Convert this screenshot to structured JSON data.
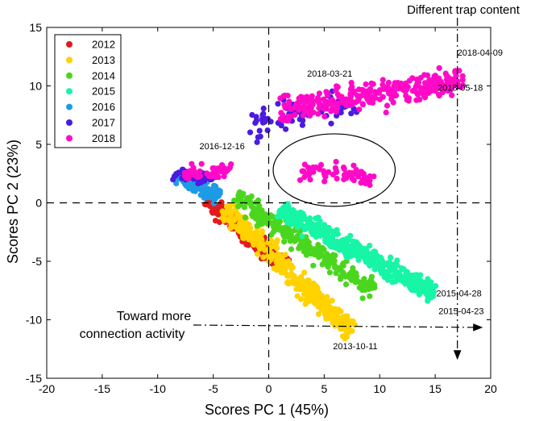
{
  "chart_data": {
    "type": "scatter",
    "title": "",
    "xlabel": "Scores PC 1 (45%)",
    "ylabel": "Scores PC 2 (23%)",
    "xlim": [
      -20,
      20
    ],
    "ylim": [
      -15,
      15
    ],
    "xticks": [
      -20,
      -15,
      -10,
      -5,
      0,
      5,
      10,
      15,
      20
    ],
    "yticks": [
      -15,
      -10,
      -5,
      0,
      5,
      10,
      15
    ],
    "grid": false,
    "legend_position": "top-left",
    "series": [
      {
        "name": "2012",
        "color": "#e41a1c",
        "clusters": [
          {
            "from": [
              -5.5,
              0.2
            ],
            "to": [
              1.5,
              -5.4
            ],
            "n": 220,
            "spread": 0.45
          }
        ]
      },
      {
        "name": "2013",
        "color": "#ffd200",
        "clusters": [
          {
            "from": [
              -4.0,
              -0.5
            ],
            "to": [
              7.5,
              -11.0
            ],
            "n": 360,
            "spread": 0.6
          }
        ]
      },
      {
        "name": "2014",
        "color": "#4bd61e",
        "clusters": [
          {
            "from": [
              -3.0,
              0.5
            ],
            "to": [
              9.5,
              -7.5
            ],
            "n": 260,
            "spread": 0.55
          }
        ]
      },
      {
        "name": "2015",
        "color": "#17f5a6",
        "clusters": [
          {
            "from": [
              1.0,
              -0.5
            ],
            "to": [
              15.0,
              -7.8
            ],
            "n": 420,
            "spread": 0.6
          }
        ]
      },
      {
        "name": "2016",
        "color": "#1e9be6",
        "clusters": [
          {
            "from": [
              -8.0,
              2.3
            ],
            "to": [
              -4.5,
              0.5
            ],
            "n": 110,
            "spread": 0.4
          }
        ]
      },
      {
        "name": "2017",
        "color": "#4a1be0",
        "clusters": [
          {
            "from": [
              -8.5,
              2.6
            ],
            "to": [
              -5.0,
              2.0
            ],
            "n": 60,
            "spread": 0.35
          },
          {
            "from": [
              -1.5,
              6.5
            ],
            "to": [
              8.0,
              8.5
            ],
            "n": 70,
            "spread": 1.0
          }
        ]
      },
      {
        "name": "2018",
        "color": "#ff0ac8",
        "clusters": [
          {
            "from": [
              -7.5,
              2.5
            ],
            "to": [
              -3.5,
              2.8
            ],
            "n": 60,
            "spread": 0.4
          },
          {
            "from": [
              1.0,
              8.0
            ],
            "to": [
              17.5,
              10.5
            ],
            "n": 300,
            "spread": 0.9
          },
          {
            "from": [
              3.0,
              3.0
            ],
            "to": [
              9.5,
              2.2
            ],
            "n": 60,
            "spread": 0.6
          }
        ]
      }
    ],
    "legend_labels": [
      "2012",
      "2013",
      "2014",
      "2015",
      "2016",
      "2017",
      "2018"
    ],
    "annotations": [
      {
        "text": "2018-04-09",
        "x": 17.0,
        "y": 12.6
      },
      {
        "text": "2018-03-21",
        "x": 5.5,
        "y": 10.8
      },
      {
        "text": "2018-05-18",
        "x": 19.3,
        "y": 9.6
      },
      {
        "text": "2016-12-16",
        "x": -4.2,
        "y": 4.6
      },
      {
        "text": "2015-04-28",
        "x": 15.1,
        "y": -8.0
      },
      {
        "text": "2015-04-23",
        "x": 15.0,
        "y": -9.5
      },
      {
        "text": "2013-10-11",
        "x": 7.8,
        "y": -12.5
      }
    ],
    "arrow_texts": {
      "trap": "Different trap content",
      "activity_line1": "Toward more",
      "activity_line2": "connection activity"
    },
    "ellipse": {
      "cx": 5.9,
      "cy": 2.8,
      "rx": 5.5,
      "ry": 3.1
    },
    "reference_lines": {
      "x": 0,
      "y": 0,
      "trap_x": 17
    }
  }
}
